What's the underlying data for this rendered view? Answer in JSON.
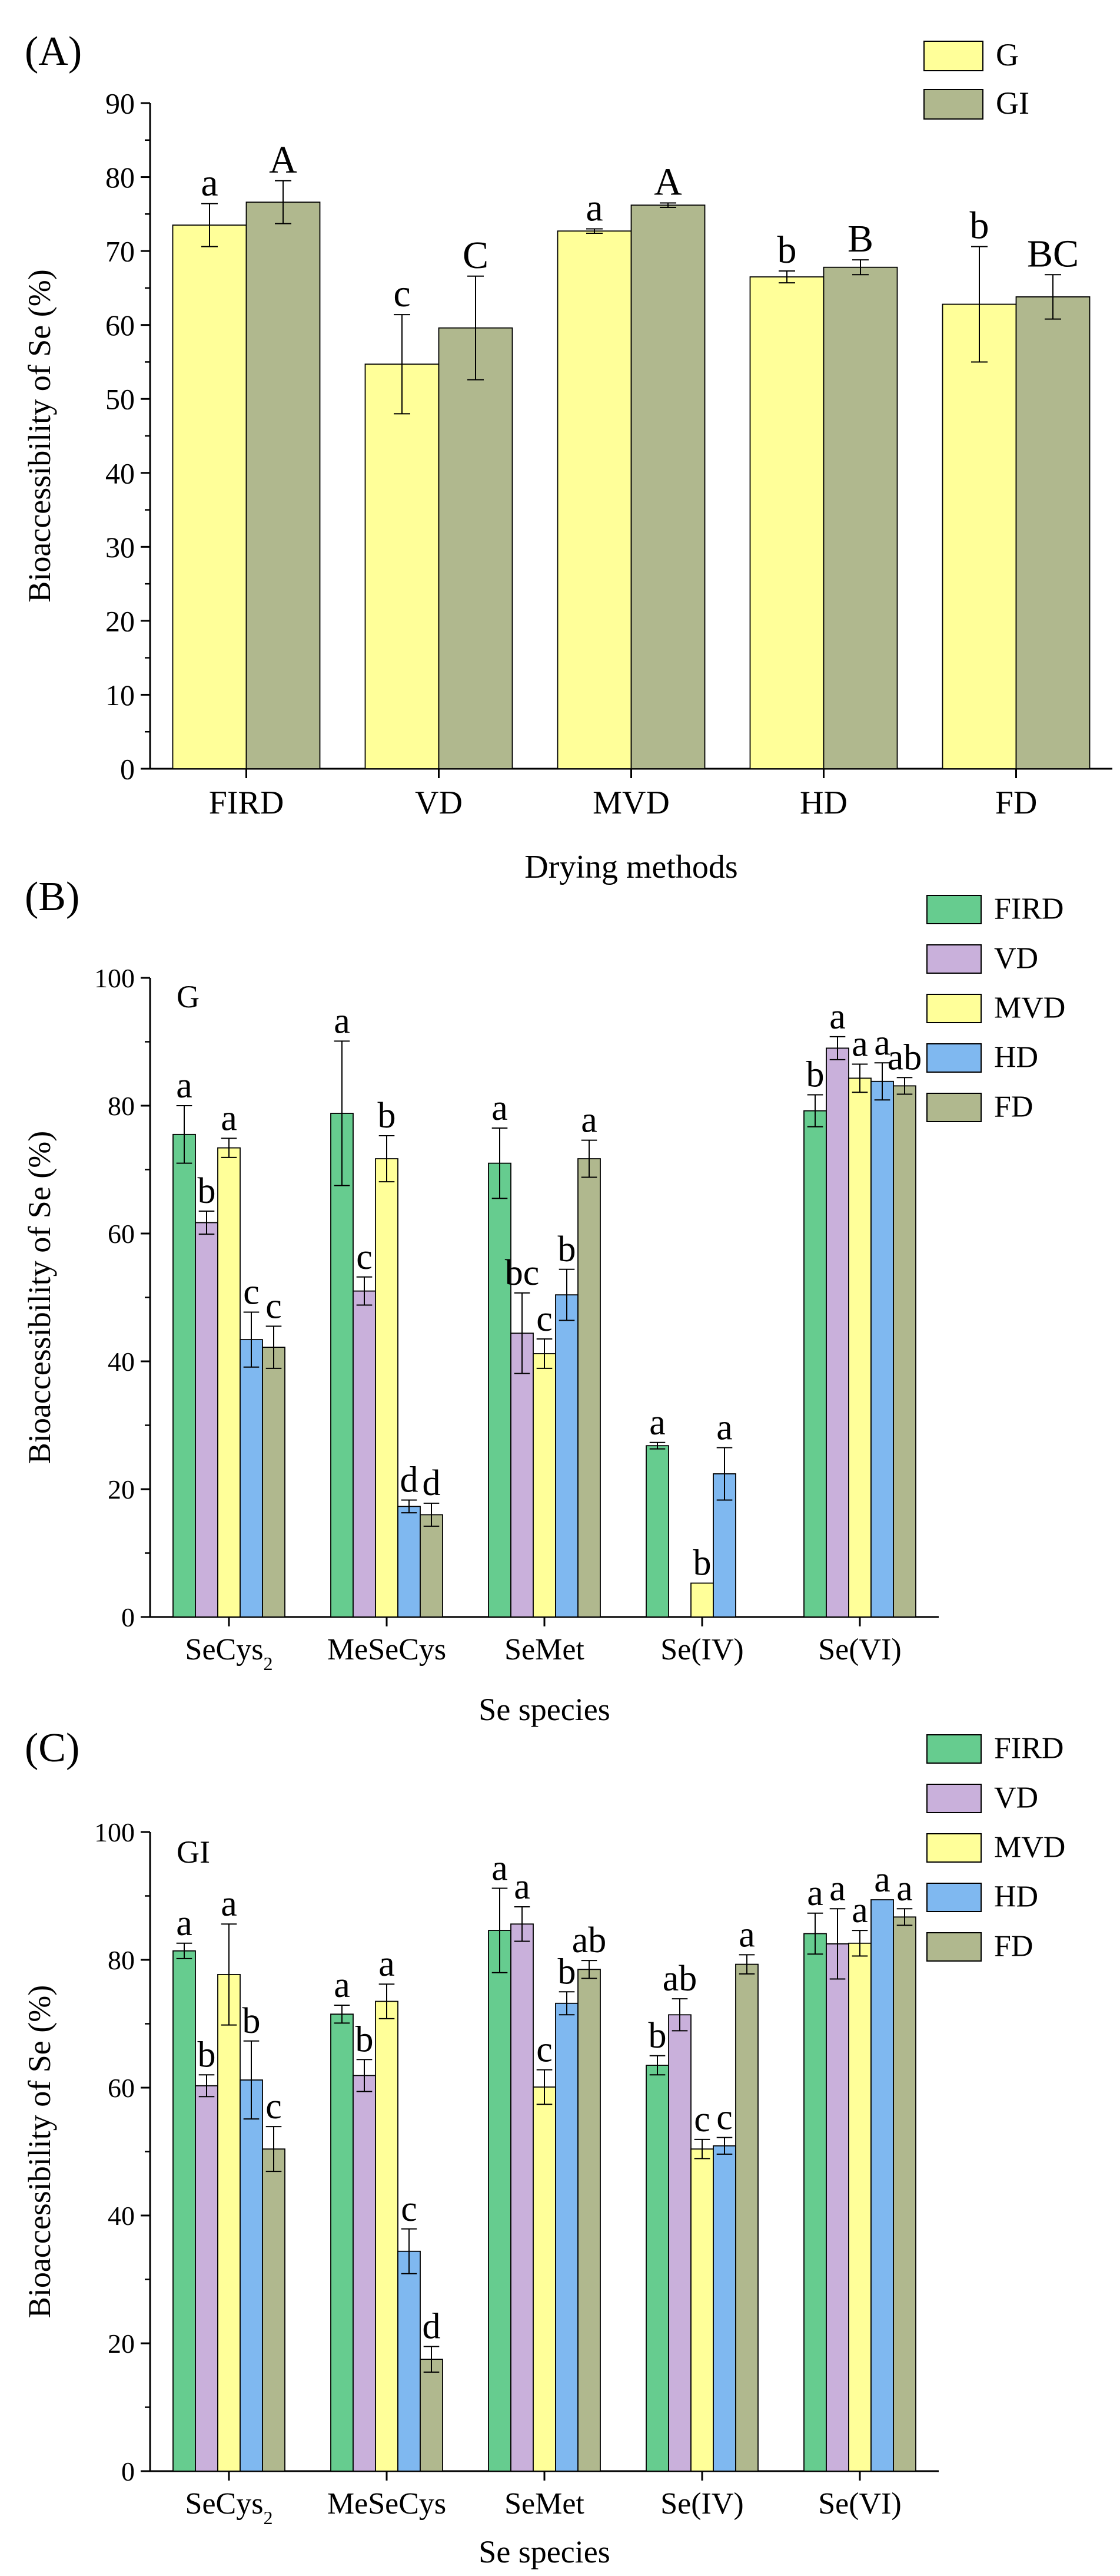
{
  "chart_data": [
    {
      "type": "bar",
      "panel_label": "(A)",
      "title": "",
      "xlabel": "Drying methods",
      "ylabel": "Bioaccessibility of Se (%)",
      "ylim": [
        0,
        90
      ],
      "yticks": [
        0,
        10,
        20,
        30,
        40,
        50,
        60,
        70,
        80,
        90
      ],
      "categories": [
        "FIRD",
        "VD",
        "MVD",
        "HD",
        "FD"
      ],
      "legend_position": "top-right",
      "series": [
        {
          "name": "G",
          "color": "#FFFF99",
          "values": [
            73.5,
            54.7,
            72.7,
            66.5,
            62.8
          ],
          "errors": [
            2.9,
            6.7,
            0.3,
            0.8,
            7.8
          ],
          "labels": [
            "a",
            "c",
            "a",
            "b",
            "b"
          ]
        },
        {
          "name": "GI",
          "color": "#B0B88E",
          "values": [
            76.6,
            59.6,
            76.2,
            67.8,
            63.8
          ],
          "errors": [
            2.9,
            7.0,
            0.3,
            1.0,
            3.0
          ],
          "labels": [
            "A",
            "C",
            "A",
            "B",
            "BC"
          ]
        }
      ]
    },
    {
      "type": "bar",
      "panel_label": "(B)",
      "inner_label": "G",
      "title": "",
      "xlabel": "Se species",
      "ylabel": "Bioaccessibility of Se (%)",
      "ylim": [
        0,
        100
      ],
      "yticks": [
        0,
        20,
        40,
        60,
        80,
        100
      ],
      "categories": [
        "SeCys2",
        "MeSeCys",
        "SeMet",
        "Se(IV)",
        "Se(VI)"
      ],
      "legend_position": "top-right",
      "series": [
        {
          "name": "FIRD",
          "color": "#66CC8F",
          "values": [
            75.5,
            78.8,
            71.0,
            26.8,
            79.2
          ],
          "errors": [
            4.5,
            11.3,
            5.5,
            0.5,
            2.5
          ],
          "labels": [
            "a",
            "a",
            "a",
            "a",
            "b"
          ]
        },
        {
          "name": "VD",
          "color": "#C9B0DB",
          "values": [
            61.7,
            51.0,
            44.4,
            null,
            89.0
          ],
          "errors": [
            1.8,
            2.2,
            6.3,
            null,
            1.8
          ],
          "labels": [
            "b",
            "c",
            "bc",
            "",
            "a"
          ]
        },
        {
          "name": "MVD",
          "color": "#FFFF99",
          "values": [
            73.4,
            71.7,
            41.2,
            5.3,
            84.3
          ],
          "errors": [
            1.5,
            3.6,
            2.3,
            0,
            2.2
          ],
          "labels": [
            "a",
            "b",
            "c",
            "b",
            "a"
          ]
        },
        {
          "name": "HD",
          "color": "#7FB8F0",
          "values": [
            43.4,
            17.3,
            50.4,
            22.4,
            83.8
          ],
          "errors": [
            4.3,
            1.0,
            4.0,
            4.1,
            2.9
          ],
          "labels": [
            "c",
            "d",
            "b",
            "a",
            "a"
          ]
        },
        {
          "name": "FD",
          "color": "#B0B88E",
          "values": [
            42.2,
            16.0,
            71.7,
            null,
            83.1
          ],
          "errors": [
            3.3,
            1.8,
            2.9,
            null,
            1.3
          ],
          "labels": [
            "c",
            "d",
            "a",
            "",
            "ab"
          ]
        }
      ]
    },
    {
      "type": "bar",
      "panel_label": "(C)",
      "inner_label": "GI",
      "title": "",
      "xlabel": "Se species",
      "ylabel": "Bioaccessibility of Se (%)",
      "ylim": [
        0,
        100
      ],
      "yticks": [
        0,
        20,
        40,
        60,
        80,
        100
      ],
      "categories": [
        "SeCys2",
        "MeSeCys",
        "SeMet",
        "Se(IV)",
        "Se(VI)"
      ],
      "legend_position": "top-right",
      "series": [
        {
          "name": "FIRD",
          "color": "#66CC8F",
          "values": [
            81.4,
            71.5,
            84.6,
            63.5,
            84.1
          ],
          "errors": [
            1.2,
            1.4,
            6.6,
            1.5,
            3.2
          ],
          "labels": [
            "a",
            "a",
            "a",
            "b",
            "a"
          ]
        },
        {
          "name": "VD",
          "color": "#C9B0DB",
          "values": [
            60.3,
            61.9,
            85.6,
            71.4,
            82.5
          ],
          "errors": [
            1.7,
            2.5,
            2.7,
            2.5,
            5.5
          ],
          "labels": [
            "b",
            "b",
            "a",
            "ab",
            "a"
          ]
        },
        {
          "name": "MVD",
          "color": "#FFFF99",
          "values": [
            77.7,
            73.5,
            60.1,
            50.4,
            82.6
          ],
          "errors": [
            7.9,
            2.7,
            2.7,
            1.5,
            2.0
          ],
          "labels": [
            "a",
            "a",
            "c",
            "c",
            "a"
          ]
        },
        {
          "name": "HD",
          "color": "#7FB8F0",
          "values": [
            61.2,
            34.4,
            73.2,
            50.9,
            89.4
          ],
          "errors": [
            6.1,
            3.5,
            1.8,
            1.3,
            0
          ],
          "labels": [
            "b",
            "c",
            "b",
            "c",
            "a"
          ]
        },
        {
          "name": "FD",
          "color": "#B0B88E",
          "values": [
            50.4,
            17.5,
            78.5,
            79.3,
            86.7
          ],
          "errors": [
            3.5,
            2.0,
            1.4,
            1.5,
            1.3
          ],
          "labels": [
            "c",
            "d",
            "ab",
            "a",
            "a"
          ]
        }
      ]
    }
  ]
}
